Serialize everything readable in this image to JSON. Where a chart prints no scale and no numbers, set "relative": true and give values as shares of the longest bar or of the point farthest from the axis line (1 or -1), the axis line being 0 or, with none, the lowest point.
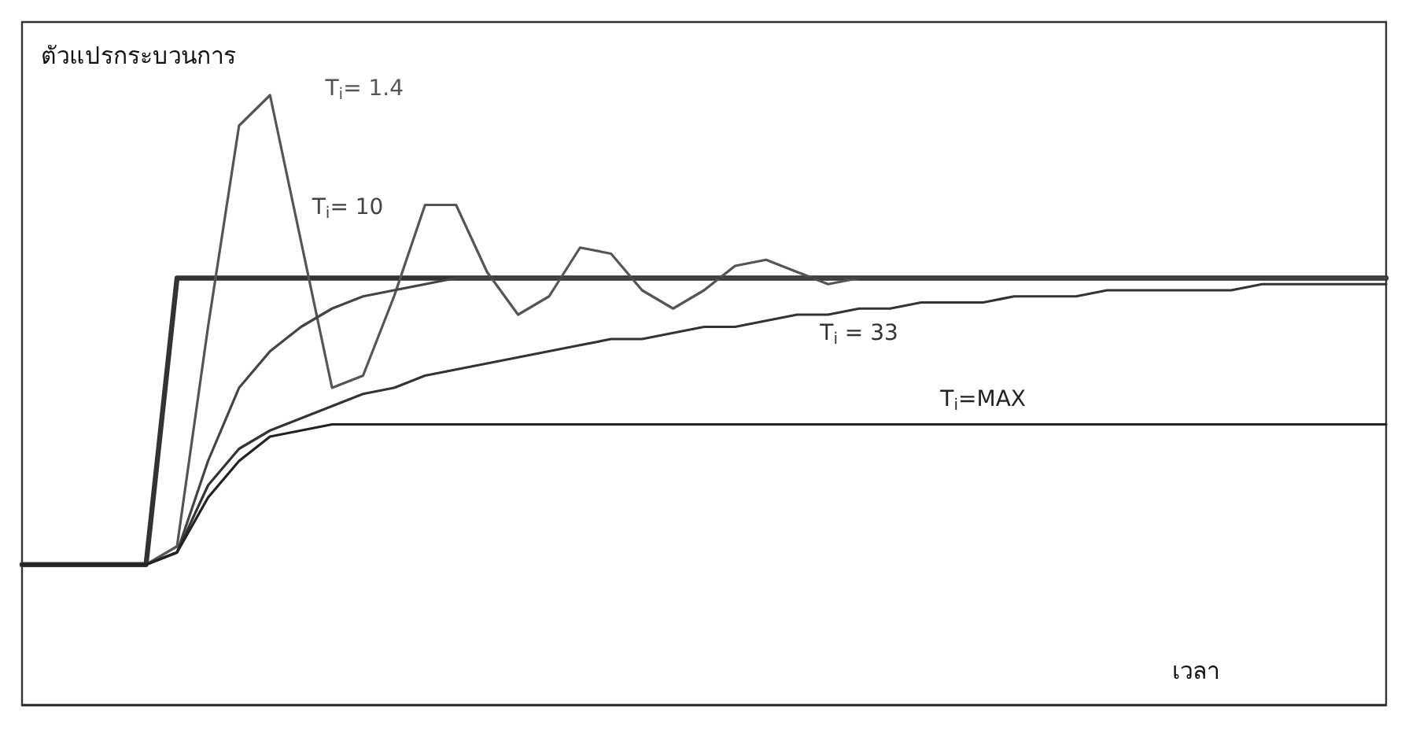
{
  "chart_data": {
    "type": "line",
    "relative": true,
    "ylabel": "ตัวแปรกระบวนการ",
    "xlabel": "เวลา",
    "grid": false,
    "legend": false,
    "marker": "none",
    "line_style": "solid",
    "categories": [
      null,
      null,
      null,
      null,
      null,
      null,
      null,
      null,
      null,
      null,
      null,
      null,
      null,
      null,
      null,
      null,
      null,
      null,
      null,
      null,
      null,
      null,
      null,
      null,
      null,
      null,
      null,
      null,
      null,
      null,
      null,
      null,
      null,
      null,
      null,
      null,
      null,
      null,
      null,
      null,
      null,
      null,
      null,
      null,
      null
    ],
    "series": [
      {
        "color": "#333333",
        "values": [
          0.23,
          0.23,
          0.23,
          0.23,
          0.23,
          0.7,
          0.7,
          0.7,
          0.7,
          0.7,
          0.7,
          0.7,
          0.7,
          0.7,
          0.7,
          0.7,
          0.7,
          0.7,
          0.7,
          0.7,
          0.7,
          0.7,
          0.7,
          0.7,
          0.7,
          0.7,
          0.7,
          0.7,
          0.7,
          0.7,
          0.7,
          0.7,
          0.7,
          0.7,
          0.7,
          0.7,
          0.7,
          0.7,
          0.7,
          0.7,
          0.7,
          0.7,
          0.7,
          0.7,
          0.7
        ]
      },
      {
        "name": "T$_{i}$= 1.4",
        "color": "#555555",
        "values": [
          0.23,
          0.23,
          0.23,
          0.23,
          0.23,
          0.26,
          0.62,
          0.95,
          1.0,
          0.76,
          0.52,
          0.54,
          0.67,
          0.82,
          0.82,
          0.71,
          0.64,
          0.67,
          0.75,
          0.74,
          0.68,
          0.65,
          0.68,
          0.72,
          0.73,
          0.71,
          0.69,
          0.7,
          0.7,
          0.7,
          0.7,
          0.7,
          0.7,
          0.7,
          0.7,
          0.7,
          0.7,
          0.7,
          0.7,
          0.7,
          0.7,
          0.7,
          0.7,
          0.7,
          0.7
        ]
      },
      {
        "name": "T$_{i}$= 10",
        "color": "#444444",
        "values": [
          0.23,
          0.23,
          0.23,
          0.23,
          0.23,
          0.25,
          0.4,
          0.52,
          0.58,
          0.62,
          0.65,
          0.67,
          0.68,
          0.69,
          0.7,
          0.7,
          0.7,
          0.7,
          0.7,
          0.7,
          0.7,
          0.7,
          0.7,
          0.7,
          0.7,
          0.7,
          0.7,
          0.7,
          0.7,
          0.7,
          0.7,
          0.7,
          0.7,
          0.7,
          0.7,
          0.7,
          0.7,
          0.7,
          0.7,
          0.7,
          0.7,
          0.7,
          0.7,
          0.7,
          0.7
        ]
      },
      {
        "name": "T$_{i}$ = 33",
        "color": "#333333",
        "values": [
          0.23,
          0.23,
          0.23,
          0.23,
          0.23,
          0.25,
          0.36,
          0.42,
          0.45,
          0.47,
          0.49,
          0.51,
          0.52,
          0.54,
          0.55,
          0.56,
          0.57,
          0.58,
          0.59,
          0.6,
          0.6,
          0.61,
          0.62,
          0.62,
          0.63,
          0.64,
          0.64,
          0.65,
          0.65,
          0.66,
          0.66,
          0.66,
          0.67,
          0.67,
          0.67,
          0.68,
          0.68,
          0.68,
          0.68,
          0.68,
          0.69,
          0.69,
          0.69,
          0.69,
          0.69
        ]
      },
      {
        "name": "T$_{i}$=MAX",
        "color": "#222222",
        "values": [
          0.23,
          0.23,
          0.23,
          0.23,
          0.23,
          0.25,
          0.34,
          0.4,
          0.44,
          0.45,
          0.46,
          0.46,
          0.46,
          0.46,
          0.46,
          0.46,
          0.46,
          0.46,
          0.46,
          0.46,
          0.46,
          0.46,
          0.46,
          0.46,
          0.46,
          0.46,
          0.46,
          0.46,
          0.46,
          0.46,
          0.46,
          0.46,
          0.46,
          0.46,
          0.46,
          0.46,
          0.46,
          0.46,
          0.46,
          0.46,
          0.46,
          0.46,
          0.46,
          0.46,
          0.46
        ]
      }
    ]
  }
}
